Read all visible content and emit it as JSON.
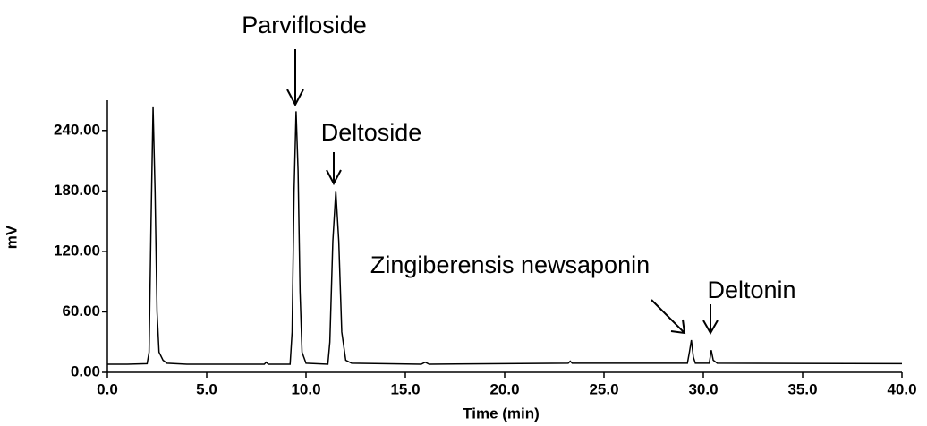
{
  "chart_data": {
    "type": "line",
    "x_label": "Time (min)",
    "y_label": "mV",
    "annotations": [
      "Parvifloside",
      "Deltoside",
      "Zingiberensis newsaponin",
      "Deltonin"
    ],
    "xlim": [
      0,
      40
    ],
    "ylim": [
      0,
      270
    ],
    "xticks": [
      {
        "value": 0,
        "label": "0.0"
      },
      {
        "value": 5,
        "label": "5.0"
      },
      {
        "value": 10,
        "label": "10.0"
      },
      {
        "value": 15,
        "label": "15.0"
      },
      {
        "value": 20,
        "label": "20.0"
      },
      {
        "value": 25,
        "label": "25.0"
      },
      {
        "value": 30,
        "label": "30.0"
      },
      {
        "value": 35,
        "label": "35.0"
      },
      {
        "value": 40,
        "label": "40.0"
      }
    ],
    "yticks": [
      {
        "value": 0,
        "label": "0.00"
      },
      {
        "value": 60,
        "label": "60.00"
      },
      {
        "value": 120,
        "label": "120.00"
      },
      {
        "value": 180,
        "label": "180.00"
      },
      {
        "value": 240,
        "label": "240.00"
      }
    ],
    "series": [
      {
        "color": "#000000",
        "x": [
          0,
          1.0,
          2.0,
          2.1,
          2.2,
          2.3,
          2.4,
          2.5,
          2.6,
          2.8,
          3.0,
          4.0,
          7.9,
          8.0,
          8.1,
          9.2,
          9.3,
          9.4,
          9.5,
          9.6,
          9.7,
          9.8,
          10.0,
          11.1,
          11.2,
          11.35,
          11.5,
          11.65,
          11.8,
          12.0,
          12.3,
          15.8,
          16.0,
          16.2,
          23.2,
          23.3,
          23.4,
          29.2,
          29.3,
          29.4,
          29.5,
          29.6,
          30.3,
          30.4,
          30.5,
          30.7,
          40
        ],
        "values": [
          8,
          8,
          8.5,
          20,
          150,
          263,
          180,
          60,
          20,
          12,
          9,
          8,
          8,
          10,
          8,
          8,
          40,
          180,
          259,
          200,
          80,
          20,
          9,
          8,
          30,
          130,
          180,
          130,
          40,
          12,
          9,
          8,
          10,
          8,
          9,
          11,
          9,
          9,
          20,
          32,
          15,
          9,
          9,
          22,
          12,
          9,
          8.5
        ]
      }
    ]
  }
}
